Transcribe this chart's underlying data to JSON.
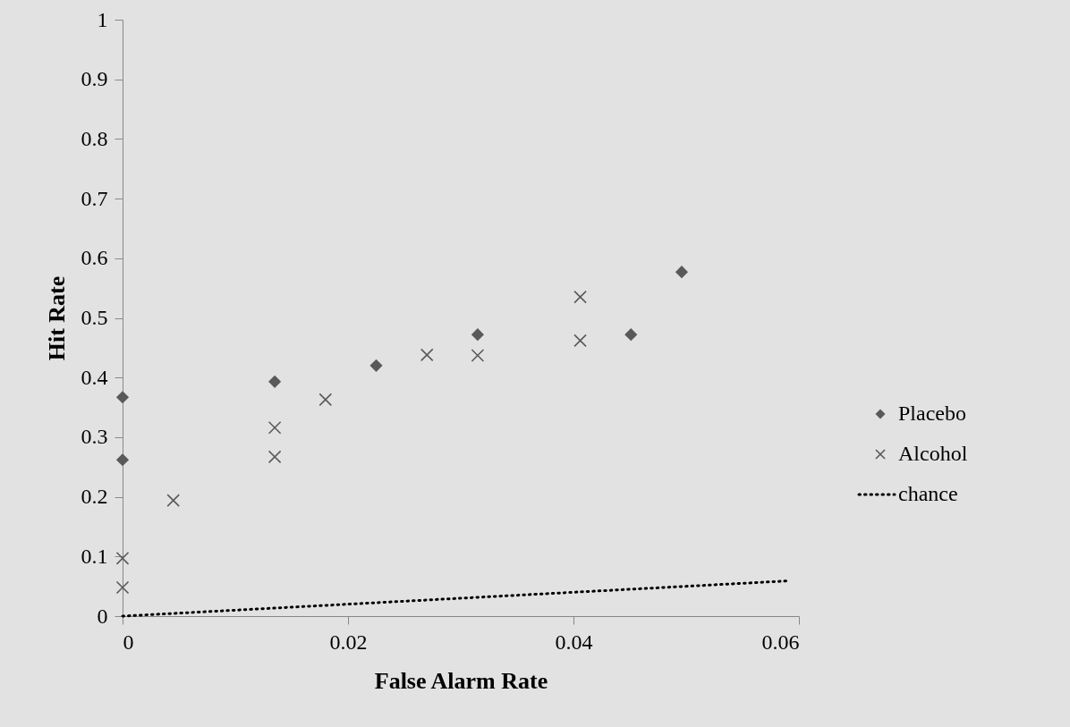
{
  "chart_data": {
    "type": "scatter",
    "xlabel": "False Alarm Rate",
    "ylabel": "Hit Rate",
    "xlim": [
      0,
      0.06
    ],
    "xticks": [
      0,
      0.02,
      0.04,
      0.06
    ],
    "ylim": [
      0,
      1
    ],
    "yticks": [
      0,
      0.1,
      0.2,
      0.3,
      0.4,
      0.5,
      0.6,
      0.7,
      0.8,
      0.9,
      1
    ],
    "legend": "right",
    "series": [
      {
        "name": "Placebo",
        "marker": "diamond",
        "color": "#595959",
        "x": [
          0,
          0,
          0.0135,
          0.0225,
          0.0315,
          0.0451,
          0.0496
        ],
        "values": [
          0.367,
          0.262,
          0.393,
          0.42,
          0.472,
          0.472,
          0.577
        ]
      },
      {
        "name": "Alcohol",
        "marker": "cross",
        "color": "#595959",
        "x": [
          0,
          0,
          0.0045,
          0.0135,
          0.0135,
          0.018,
          0.027,
          0.0315,
          0.0406,
          0.0406
        ],
        "values": [
          0.097,
          0.048,
          0.194,
          0.316,
          0.267,
          0.363,
          0.438,
          0.437,
          0.535,
          0.462
        ]
      },
      {
        "name": "chance",
        "type": "line",
        "marker": "none",
        "line_style": "dotted",
        "color": "#000000",
        "x": [
          0,
          0.059
        ],
        "values": [
          0,
          0.059
        ]
      }
    ]
  }
}
